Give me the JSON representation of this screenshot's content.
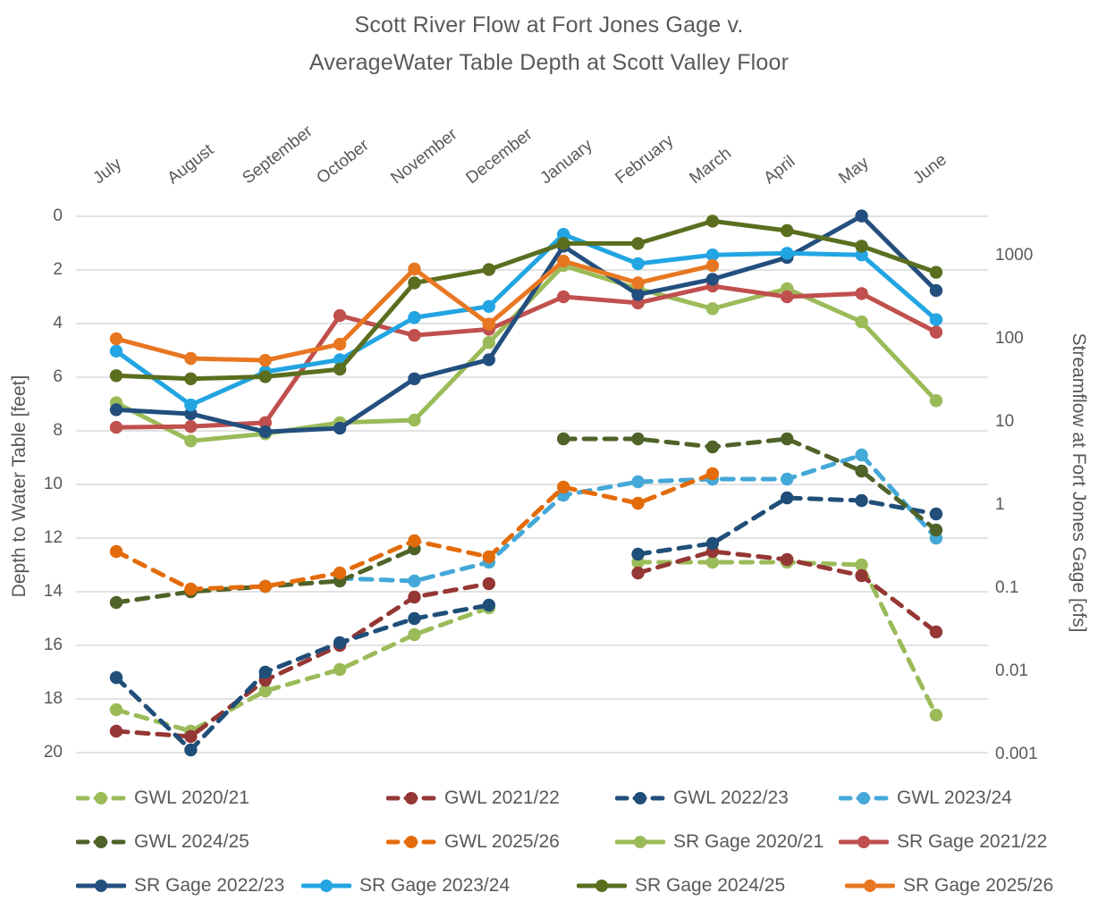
{
  "title": {
    "line1": "Scott River Flow at Fort Jones Gage v.",
    "line2": "AverageWater Table Depth at Scott Valley Floor"
  },
  "axes": {
    "left": {
      "title": "Depth to Water Table [feet]",
      "tick_labels": [
        "0",
        "2",
        "4",
        "6",
        "8",
        "10",
        "12",
        "14",
        "16",
        "18",
        "20"
      ]
    },
    "right": {
      "title": "Streamflow at Fort Jones Gage [cfs]",
      "tick_labels": [
        "1000",
        "100",
        "10",
        "1",
        "0.1",
        "0.01",
        "0.001"
      ]
    }
  },
  "chart_data": {
    "type": "line",
    "title": "Scott River Flow at Fort Jones Gage v. AverageWater Table Depth at Scott Valley Floor",
    "categories": [
      "July",
      "August",
      "September",
      "October",
      "November",
      "December",
      "January",
      "February",
      "March",
      "April",
      "May",
      "June"
    ],
    "left_axis": {
      "label": "Depth to Water Table [feet]",
      "range": [
        0,
        20
      ],
      "inverted_depth": true,
      "ticks": [
        0,
        2,
        4,
        6,
        8,
        10,
        12,
        14,
        16,
        18,
        20
      ]
    },
    "right_axis": {
      "label": "Streamflow at Fort Jones Gage [cfs]",
      "scale": "log",
      "range": [
        0.001,
        3000
      ],
      "ticks": [
        1000,
        100,
        10,
        1,
        0.1,
        0.01,
        0.001
      ]
    },
    "grid": "horizontal",
    "legend_position": "bottom",
    "series": [
      {
        "name": "GWL 2020/21",
        "axis": "left",
        "style": "dashed",
        "color": "#9BBB59",
        "values": [
          18.4,
          19.2,
          17.7,
          16.9,
          15.6,
          14.6,
          null,
          12.9,
          12.9,
          12.9,
          13.0,
          18.6
        ]
      },
      {
        "name": "GWL 2021/22",
        "axis": "left",
        "style": "dashed",
        "color": "#953735",
        "values": [
          19.2,
          19.4,
          17.3,
          16.0,
          14.2,
          13.7,
          null,
          13.3,
          12.5,
          12.8,
          13.4,
          15.5
        ]
      },
      {
        "name": "GWL 2022/23",
        "axis": "left",
        "style": "dashed",
        "color": "#1F4E79",
        "values": [
          17.2,
          19.9,
          17.0,
          15.9,
          15.0,
          14.5,
          null,
          12.6,
          12.2,
          10.5,
          10.6,
          11.1
        ]
      },
      {
        "name": "GWL 2023/24",
        "axis": "left",
        "style": "dashed",
        "color": "#44A8D8",
        "values": [
          null,
          null,
          null,
          13.5,
          13.6,
          12.9,
          10.4,
          9.9,
          9.8,
          9.8,
          8.9,
          12.0
        ]
      },
      {
        "name": "GWL 2024/25",
        "axis": "left",
        "style": "dashed",
        "color": "#4F6228",
        "values": [
          14.4,
          14.0,
          13.8,
          13.6,
          12.4,
          null,
          8.3,
          8.3,
          8.6,
          8.3,
          9.5,
          11.7
        ]
      },
      {
        "name": "GWL 2025/26",
        "axis": "left",
        "style": "dashed",
        "color": "#E36C0A",
        "values": [
          12.5,
          13.9,
          13.8,
          13.3,
          12.1,
          12.7,
          10.1,
          10.7,
          9.6,
          null,
          null,
          null
        ]
      },
      {
        "name": "SR Gage 2020/21",
        "axis": "right",
        "style": "solid",
        "color": "#9BBB59",
        "values": [
          17,
          5.9,
          7.2,
          9.8,
          10.5,
          90,
          760,
          400,
          230,
          400,
          160,
          18
        ]
      },
      {
        "name": "SR Gage 2021/22",
        "axis": "right",
        "style": "solid",
        "color": "#C0504D",
        "values": [
          8.6,
          8.8,
          9.8,
          190,
          110,
          130,
          320,
          270,
          430,
          320,
          350,
          120
        ]
      },
      {
        "name": "SR Gage 2022/23",
        "axis": "right",
        "style": "solid",
        "color": "#234F7E",
        "values": [
          14,
          12.5,
          7.6,
          8.4,
          33,
          56,
          1300,
          340,
          520,
          950,
          3000,
          380
        ]
      },
      {
        "name": "SR Gage 2023/24",
        "axis": "right",
        "style": "solid",
        "color": "#22A5E2",
        "values": [
          71,
          16,
          40,
          56,
          180,
          245,
          1800,
          800,
          1020,
          1070,
          1020,
          170
        ]
      },
      {
        "name": "SR Gage 2024/25",
        "axis": "right",
        "style": "solid",
        "color": "#5A6E1F",
        "values": [
          36,
          33,
          35,
          43,
          470,
          680,
          1400,
          1400,
          2600,
          2000,
          1300,
          630
        ]
      },
      {
        "name": "SR Gage 2025/26",
        "axis": "right",
        "style": "solid",
        "color": "#E87722",
        "values": [
          100,
          58,
          55,
          86,
          690,
          150,
          860,
          470,
          760,
          null,
          null,
          null
        ]
      }
    ]
  },
  "colors": {
    "grid": "#D9D9D9",
    "text": "#595959",
    "background": "#FFFFFF"
  }
}
